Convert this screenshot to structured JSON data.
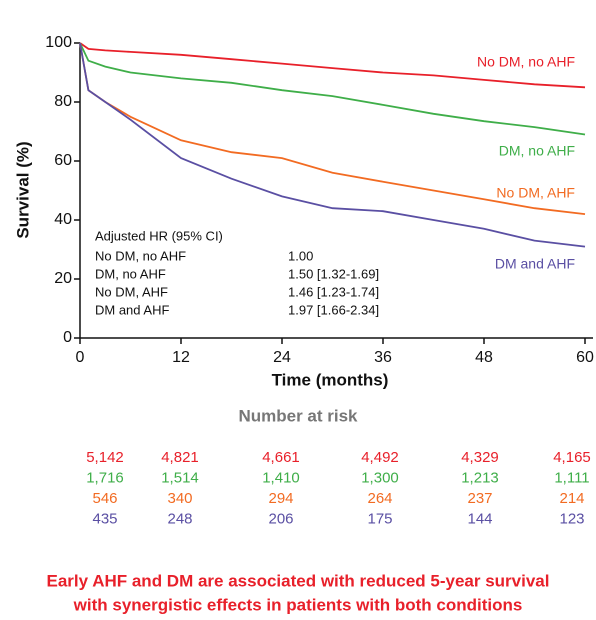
{
  "chart_data": {
    "type": "line",
    "x_label": "Time (months)",
    "y_label": "Survival (%)",
    "xlim": [
      0,
      60
    ],
    "xticks": [
      0,
      12,
      24,
      36,
      48,
      60
    ],
    "ylim": [
      0,
      100
    ],
    "yticks": [
      0,
      20,
      40,
      60,
      80,
      100
    ],
    "x": [
      0,
      1,
      3,
      6,
      12,
      18,
      24,
      30,
      36,
      42,
      48,
      54,
      60
    ],
    "series": [
      {
        "name": "No DM, no AHF",
        "color": "#e8202a",
        "values": [
          100,
          98,
          97.5,
          97,
          96,
          94.5,
          93,
          91.5,
          90,
          89,
          87.5,
          86,
          85
        ]
      },
      {
        "name": "DM, no AHF",
        "color": "#3fae49",
        "values": [
          100,
          94,
          92,
          90,
          88,
          86.5,
          84,
          82,
          79,
          76,
          73.5,
          71.5,
          69
        ]
      },
      {
        "name": "No DM, AHF",
        "color": "#f26b22",
        "values": [
          100,
          84,
          80,
          75,
          67,
          63,
          61,
          56,
          53,
          50,
          47,
          44,
          42
        ]
      },
      {
        "name": "DM and AHF",
        "color": "#5a4fa3",
        "values": [
          100,
          84,
          80,
          74,
          61,
          54,
          48,
          44,
          43,
          40,
          37,
          33,
          31
        ]
      }
    ],
    "hr_table": {
      "title": "Adjusted HR (95% CI)",
      "rows": [
        [
          "No DM, no AHF",
          "1.00"
        ],
        [
          "DM, no AHF",
          "1.50 [1.32-1.69]"
        ],
        [
          "No DM, AHF",
          "1.46 [1.23-1.74]"
        ],
        [
          "DM and AHF",
          "1.97 [1.66-2.34]"
        ]
      ]
    },
    "number_at_risk": {
      "title": "Number at risk",
      "rows": [
        [
          "5,142",
          "4,821",
          "4,661",
          "4,492",
          "4,329",
          "4,165"
        ],
        [
          "1,716",
          "1,514",
          "1,410",
          "1,300",
          "1,213",
          "1,111"
        ],
        [
          "546",
          "340",
          "294",
          "264",
          "237",
          "214"
        ],
        [
          "435",
          "248",
          "206",
          "175",
          "144",
          "123"
        ]
      ]
    },
    "footer": [
      "Early AHF and DM are associated with reduced 5-year survival",
      "with synergistic effects in patients with both conditions"
    ]
  }
}
